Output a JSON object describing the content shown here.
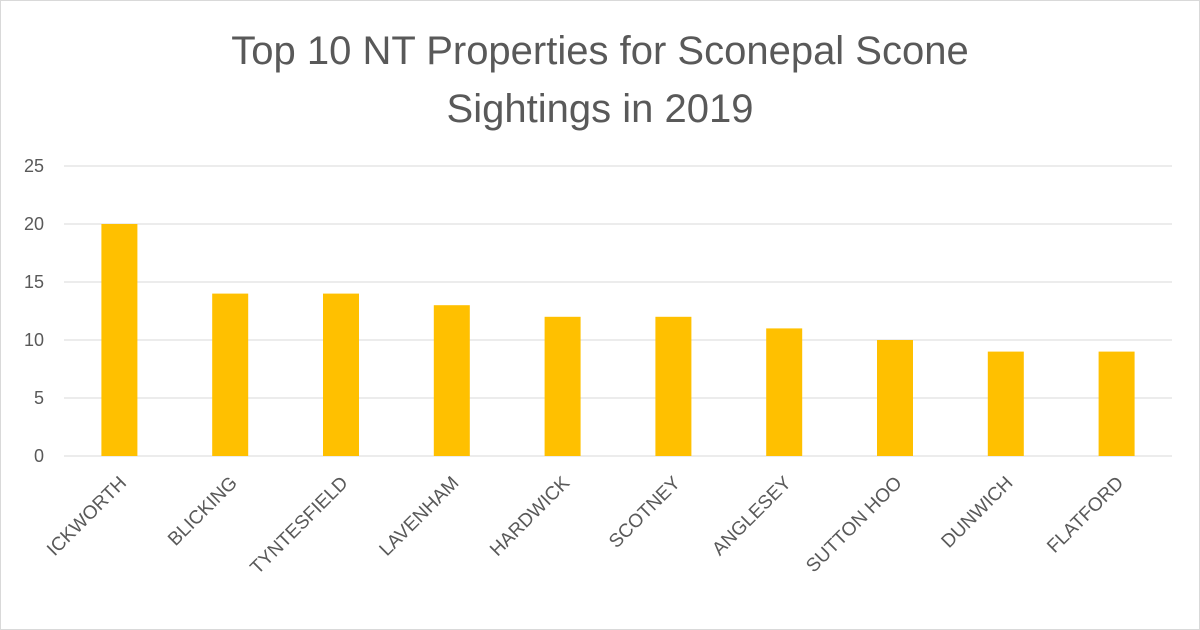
{
  "chart_data": {
    "type": "bar",
    "title_lines": [
      "Top 10 NT Properties for Sconepal Scone",
      "Sightings in 2019"
    ],
    "categories": [
      "ICKWORTH",
      "BLICKING",
      "TYNTESFIELD",
      "LAVENHAM",
      "HARDWICK",
      "SCOTNEY",
      "ANGLESEY",
      "SUTTON HOO",
      "DUNWICH",
      "FLATFORD"
    ],
    "values": [
      20,
      14,
      14,
      13,
      12,
      12,
      11,
      10,
      9,
      9
    ],
    "ylim": [
      0,
      25
    ],
    "yticks": [
      0,
      5,
      10,
      15,
      20,
      25
    ],
    "xlabel": "",
    "ylabel": "",
    "grid": true,
    "legend": "none",
    "bar_color": "#FFC000",
    "grid_color": "#D9D9D9",
    "text_color": "#595959"
  }
}
